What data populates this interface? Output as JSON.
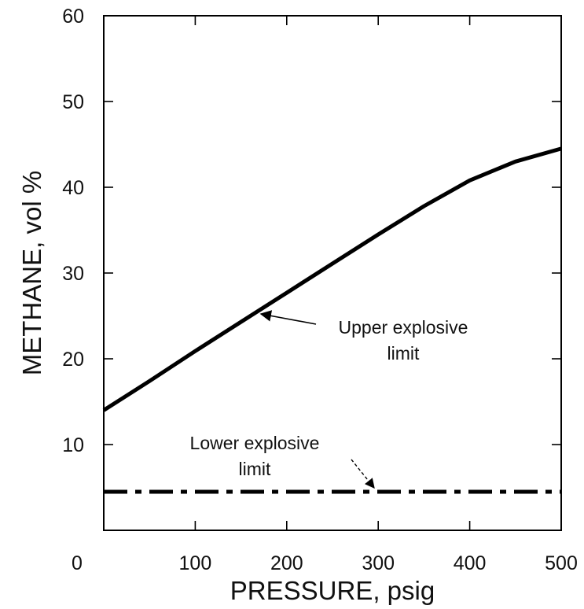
{
  "chart_data": {
    "type": "line",
    "title": "",
    "xlabel": "PRESSURE, psig",
    "ylabel": "METHANE, vol %",
    "xlim": [
      0,
      500
    ],
    "ylim": [
      0,
      60
    ],
    "x_ticks": [
      0,
      100,
      200,
      300,
      400,
      500
    ],
    "y_ticks": [
      10,
      20,
      30,
      40,
      50,
      60
    ],
    "x_tick_labels": [
      "0",
      "100",
      "200",
      "300",
      "400",
      "500"
    ],
    "y_tick_labels": [
      "10",
      "20",
      "30",
      "40",
      "50",
      "60"
    ],
    "grid": false,
    "series": [
      {
        "name": "Upper explosive limit",
        "style": "solid",
        "color": "#000000",
        "x": [
          0,
          50,
          100,
          150,
          200,
          250,
          300,
          350,
          400,
          450,
          500
        ],
        "y": [
          14.0,
          17.4,
          20.9,
          24.3,
          27.7,
          31.1,
          34.5,
          37.8,
          40.8,
          43.0,
          44.5
        ]
      },
      {
        "name": "Lower explosive limit",
        "style": "dash-dot",
        "color": "#000000",
        "x": [
          0,
          500
        ],
        "y": [
          4.5,
          4.5
        ]
      }
    ],
    "annotations": [
      {
        "id": "uel",
        "lines": [
          "Upper explosive",
          "limit"
        ],
        "points_to": "Upper explosive limit"
      },
      {
        "id": "lel",
        "lines": [
          "Lower explosive",
          "limit"
        ],
        "points_to": "Lower explosive limit"
      }
    ]
  }
}
